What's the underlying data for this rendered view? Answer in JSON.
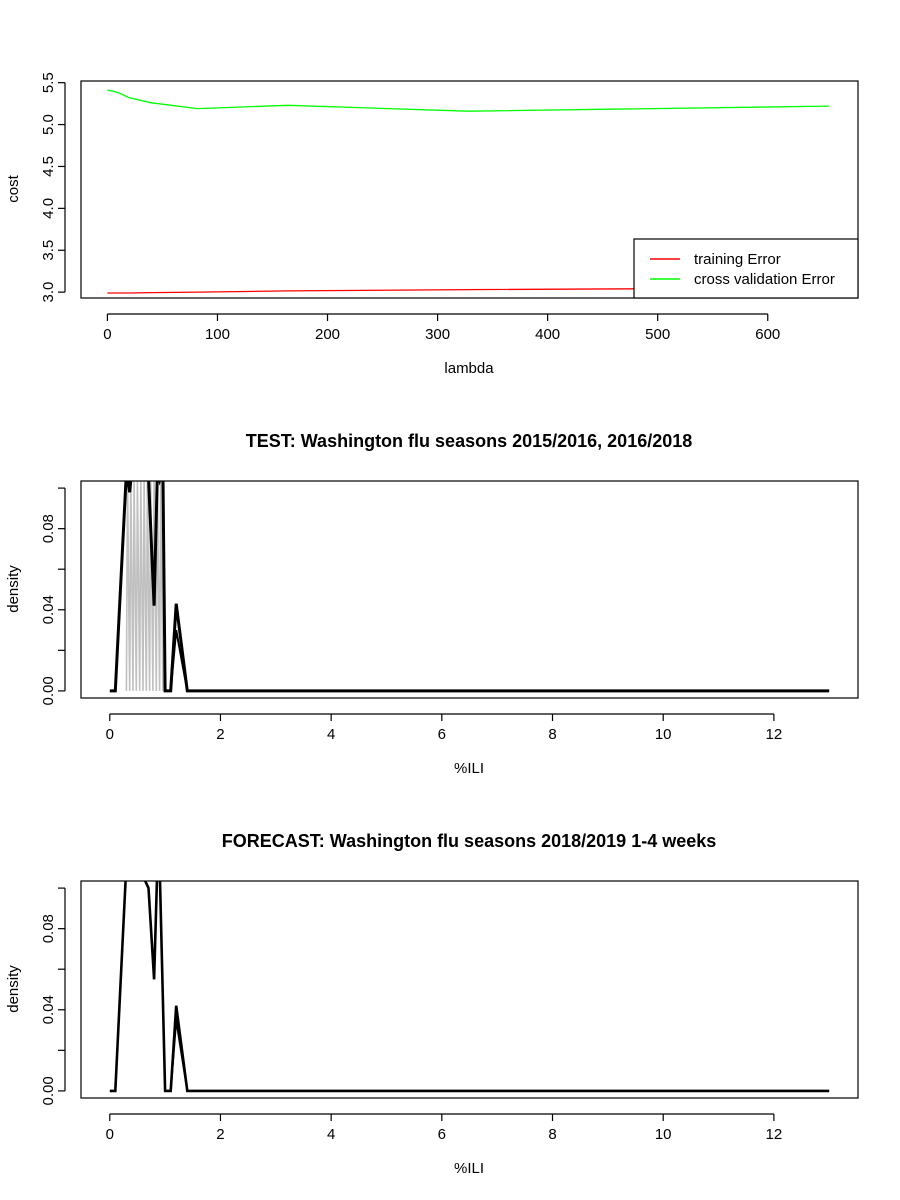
{
  "chart_data": [
    {
      "type": "line",
      "title": "",
      "xlabel": "lambda",
      "ylabel": "cost",
      "xlim": [
        -24,
        682
      ],
      "ylim": [
        2.93,
        5.52
      ],
      "xticks": [
        0,
        100,
        200,
        300,
        400,
        500,
        600
      ],
      "yticks": [
        3.0,
        3.5,
        4.0,
        4.5,
        5.0,
        5.5
      ],
      "ytick_labels": [
        "3.0",
        "3.5",
        "4.0",
        "4.5",
        "5.0",
        "5.5"
      ],
      "grid": false,
      "legend_position": "bottom-right",
      "series": [
        {
          "name": "training Error",
          "color": "#ff0000",
          "x": [
            0,
            10,
            20,
            40,
            82,
            164,
            328,
            656
          ],
          "y": [
            2.99,
            2.99,
            2.99,
            2.995,
            3.0,
            3.015,
            3.03,
            3.05
          ]
        },
        {
          "name": "cross validation Error",
          "color": "#00ff00",
          "x": [
            0,
            5,
            10,
            20,
            40,
            82,
            164,
            328,
            656
          ],
          "y": [
            5.41,
            5.4,
            5.38,
            5.32,
            5.26,
            5.19,
            5.23,
            5.16,
            5.22
          ]
        }
      ]
    },
    {
      "type": "line",
      "title": "TEST: Washington  flu seasons 2015/2016, 2016/2018",
      "xlabel": "%ILI",
      "ylabel": "density",
      "xlim": [
        -0.52,
        13.52
      ],
      "ylim": [
        -0.0035,
        0.1035
      ],
      "xticks": [
        0,
        2,
        4,
        6,
        8,
        10,
        12
      ],
      "yticks": [
        0.0,
        0.02,
        0.04,
        0.06,
        0.08,
        0.1
      ],
      "ytick_labels": [
        "0.00",
        "",
        "0.04",
        "",
        "0.08",
        ""
      ],
      "grid": false,
      "series": [
        {
          "color": "#c0c0c0",
          "x": [
            0.3,
            0.32,
            0.36,
            0.38,
            0.42,
            0.44,
            0.48,
            0.5,
            0.54,
            0.56,
            0.6,
            0.62,
            0.66,
            0.68,
            0.72,
            0.74,
            0.78,
            0.8,
            0.84,
            0.86,
            0.9,
            0.92,
            0.96
          ],
          "y": [
            0.0,
            0.104,
            0.0,
            0.104,
            0.0,
            0.104,
            0.0,
            0.104,
            0.0,
            0.104,
            0.0,
            0.104,
            0.0,
            0.104,
            0.0,
            0.104,
            0.0,
            0.104,
            0.0,
            0.104,
            0.0,
            0.104,
            0.0
          ]
        },
        {
          "color": "#000000",
          "x": [
            0.0,
            0.1,
            0.3,
            0.36,
            0.4,
            0.5,
            0.6,
            0.7,
            0.8,
            0.86,
            0.9,
            0.96,
            1.0,
            1.1,
            1.2,
            1.4,
            13.0
          ],
          "y": [
            0.0,
            0.0,
            0.108,
            0.098,
            0.11,
            0.108,
            0.11,
            0.105,
            0.042,
            0.108,
            0.104,
            0.11,
            0.0,
            0.0,
            0.043,
            0.0,
            0.0
          ]
        },
        {
          "color": "#000000",
          "x": [
            1.1,
            1.2,
            1.4
          ],
          "y": [
            0.0,
            0.03,
            0.0
          ]
        }
      ]
    },
    {
      "type": "line",
      "title": "FORECAST: Washington flu seasons 2018/2019 1-4 weeks",
      "xlabel": "%ILI",
      "ylabel": "density",
      "xlim": [
        -0.52,
        13.52
      ],
      "ylim": [
        -0.0035,
        0.1035
      ],
      "xticks": [
        0,
        2,
        4,
        6,
        8,
        10,
        12
      ],
      "yticks": [
        0.0,
        0.02,
        0.04,
        0.06,
        0.08,
        0.1
      ],
      "ytick_labels": [
        "0.00",
        "",
        "0.04",
        "",
        "0.08",
        ""
      ],
      "grid": false,
      "series": [
        {
          "color": "#000000",
          "x": [
            0.0,
            0.1,
            0.3,
            0.5,
            0.7,
            0.8,
            0.86,
            0.9,
            1.0,
            1.1,
            1.2,
            1.4,
            13.0
          ],
          "y": [
            0.0,
            0.0,
            0.112,
            0.112,
            0.1,
            0.055,
            0.112,
            0.112,
            0.0,
            0.0,
            0.042,
            0.0,
            0.0
          ]
        },
        {
          "color": "#000000",
          "x": [
            1.1,
            1.2,
            1.4
          ],
          "y": [
            0.0,
            0.035,
            0.0
          ]
        }
      ]
    }
  ]
}
